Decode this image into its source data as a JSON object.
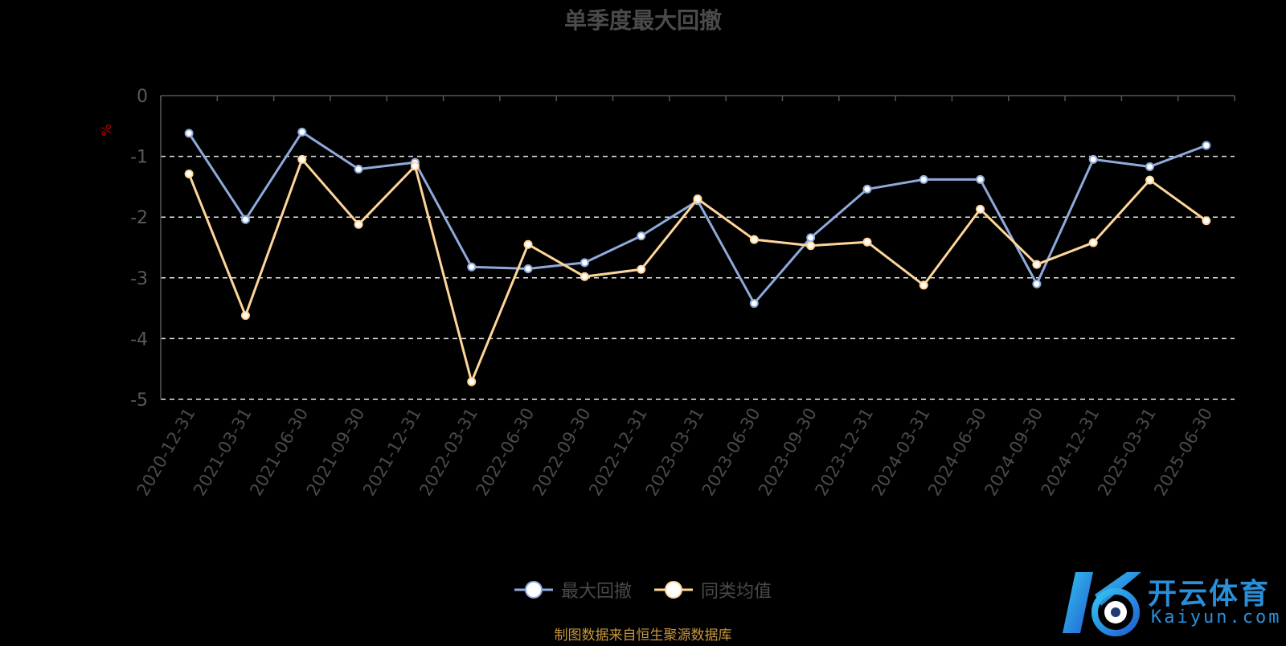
{
  "chart_data": {
    "type": "line",
    "title": "单季度最大回撤",
    "ylabel": "%",
    "ylim": [
      -5,
      0
    ],
    "yticks": [
      0,
      -1,
      -2,
      -3,
      -4,
      -5
    ],
    "grid": true,
    "legend_position": "bottom",
    "categories": [
      "2020-12-31",
      "2021-03-31",
      "2021-06-30",
      "2021-09-30",
      "2021-12-31",
      "2022-03-31",
      "2022-06-30",
      "2022-09-30",
      "2022-12-31",
      "2023-03-31",
      "2023-06-30",
      "2023-09-30",
      "2023-12-31",
      "2024-03-31",
      "2024-06-30",
      "2024-09-30",
      "2024-12-31",
      "2025-03-31",
      "2025-06-30"
    ],
    "series": [
      {
        "name": "最大回撤",
        "color": "#8eaadb",
        "values": [
          -0.62,
          -2.04,
          -0.6,
          -1.21,
          -1.1,
          -2.82,
          -2.85,
          -2.75,
          -2.31,
          -1.73,
          -3.42,
          -2.34,
          -1.54,
          -1.38,
          -1.38,
          -3.1,
          -1.05,
          -1.17,
          -0.82
        ]
      },
      {
        "name": "同类均值",
        "color": "#ffd699",
        "values": [
          -1.29,
          -3.62,
          -1.05,
          -2.12,
          -1.16,
          -4.71,
          -2.45,
          -2.98,
          -2.86,
          -1.7,
          -2.37,
          -2.47,
          -2.41,
          -3.12,
          -1.87,
          -2.78,
          -2.42,
          -1.39,
          -2.06
        ]
      }
    ]
  },
  "source_note": "制图数据来自恒生聚源数据库",
  "logo": {
    "name_cn": "开云体育",
    "name_en": "Kaiyun.com"
  }
}
